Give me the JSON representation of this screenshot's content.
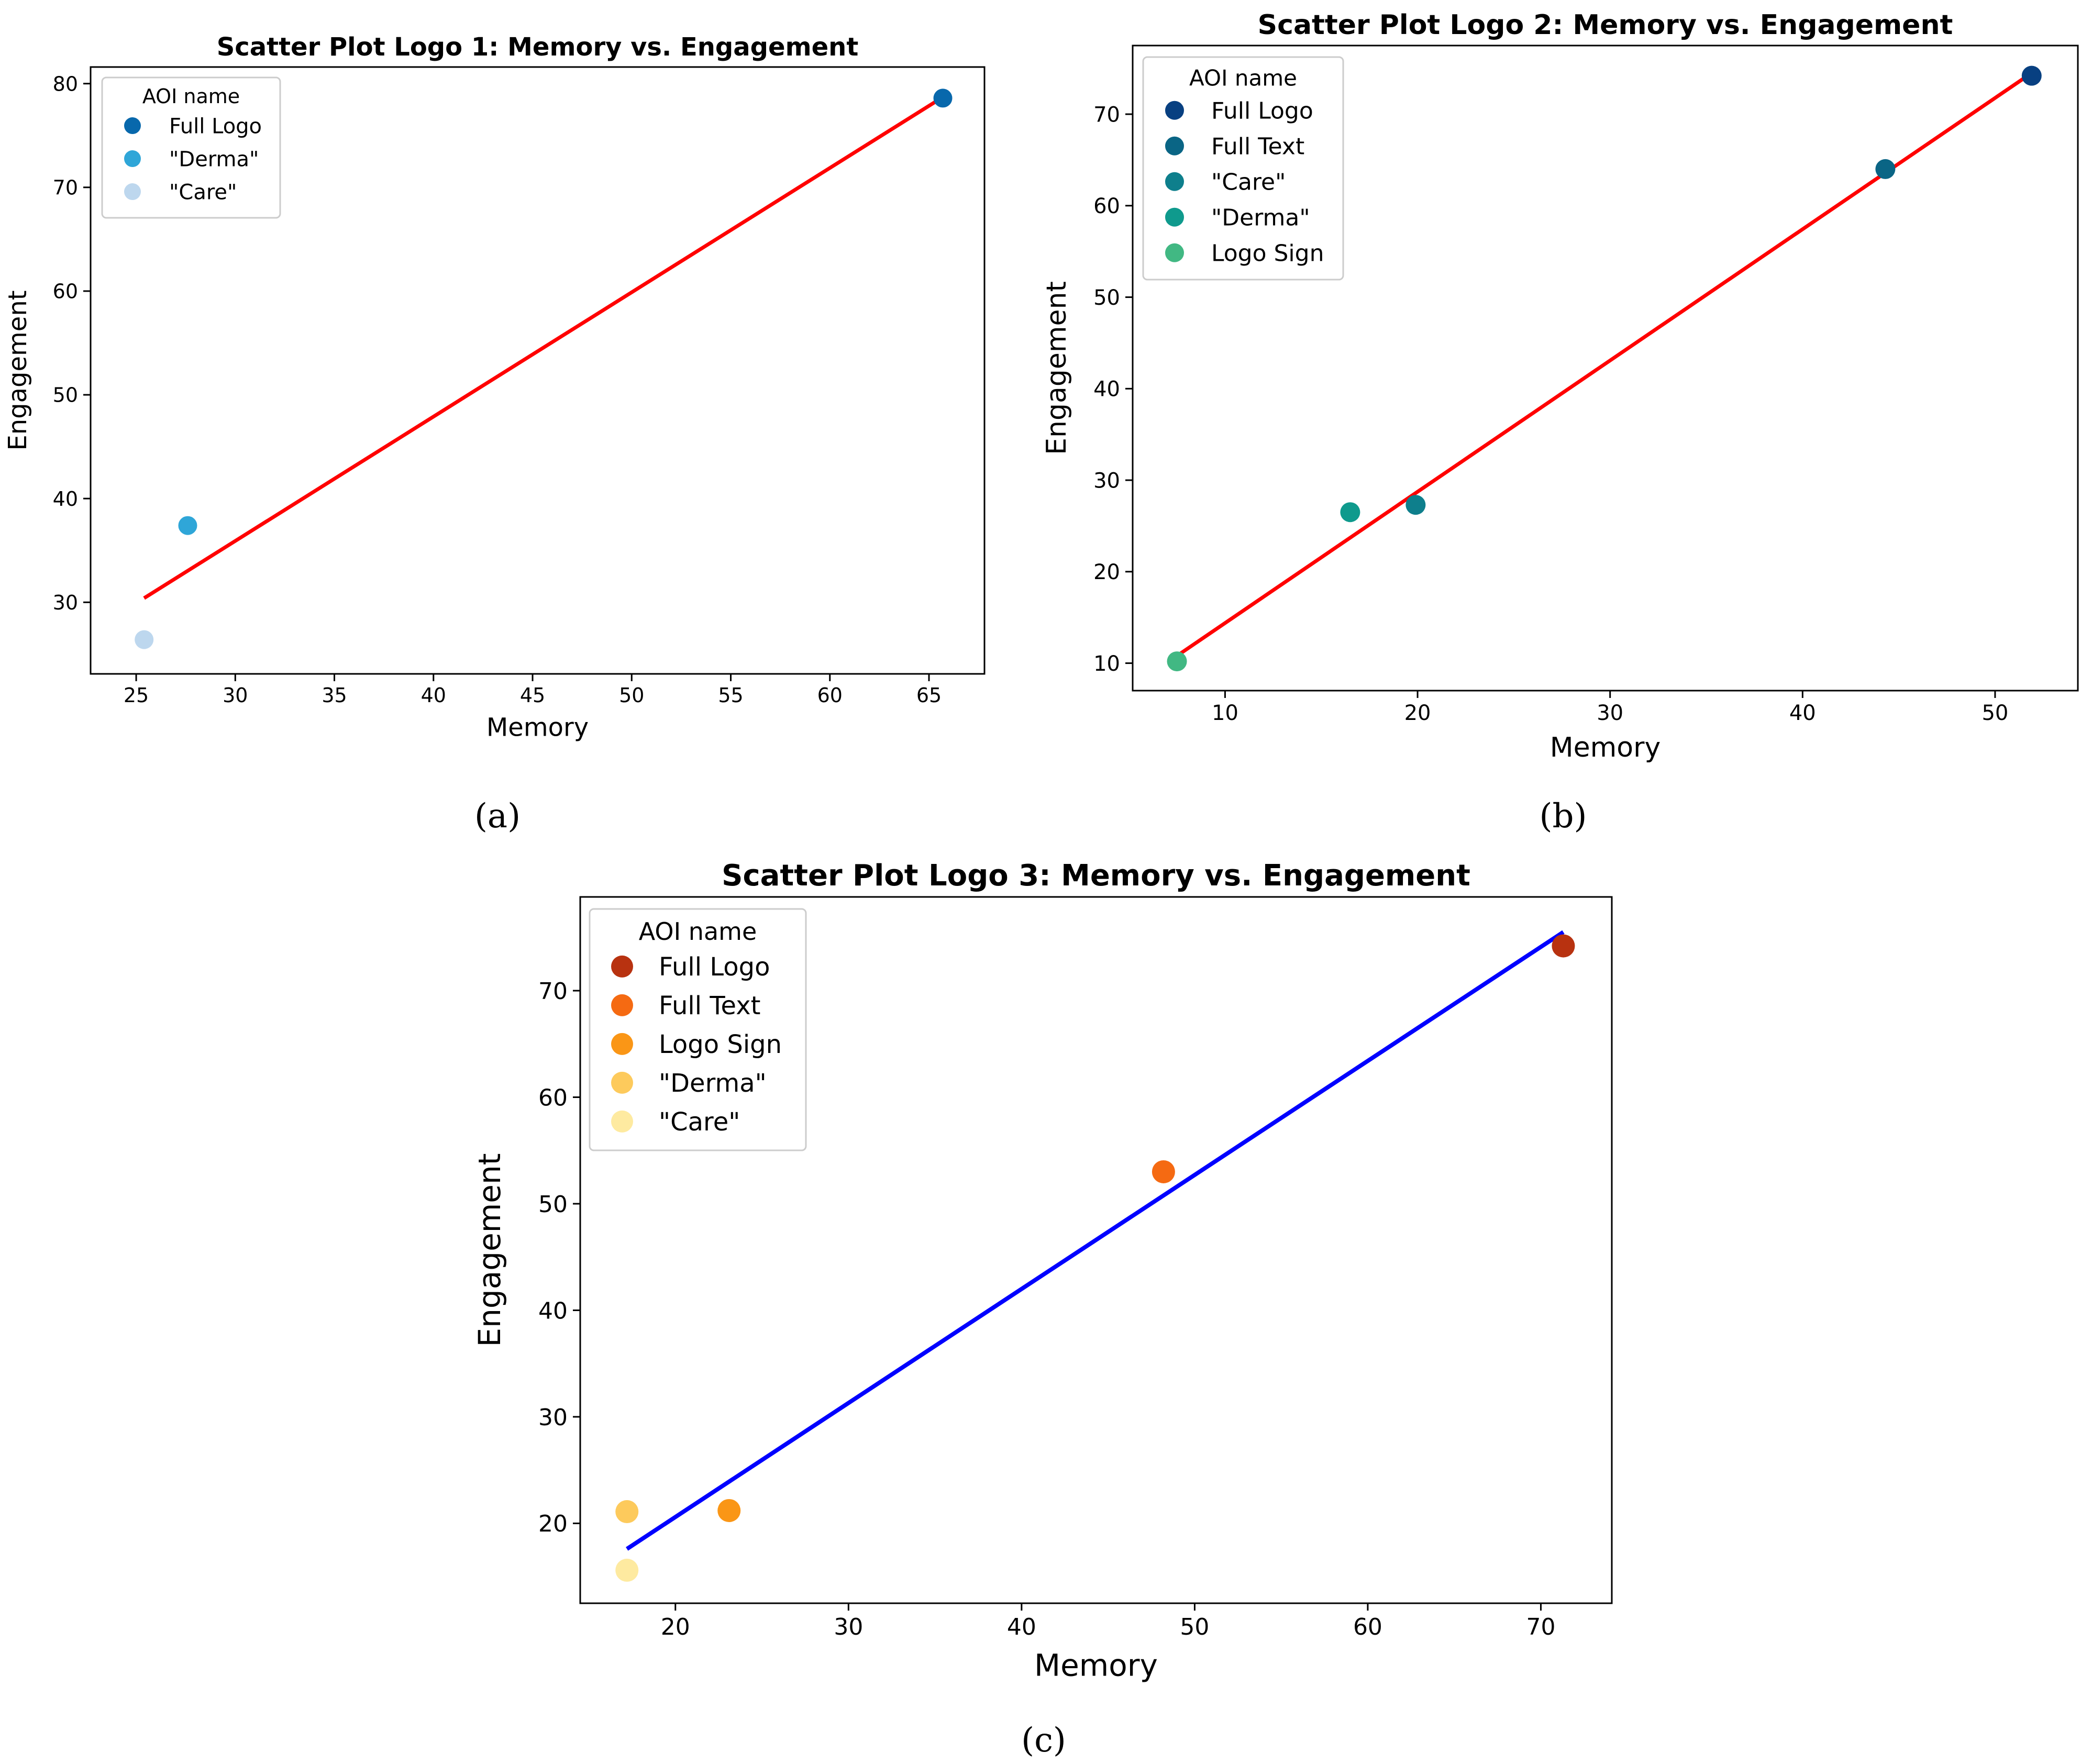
{
  "chart_data": [
    {
      "id": "a",
      "type": "scatter",
      "title": "Scatter Plot Logo 1: Memory vs. Engagement",
      "xlabel": "Memory",
      "ylabel": "Engagement",
      "xlim": [
        22.7,
        67.8
      ],
      "ylim": [
        23.1,
        81.6
      ],
      "xticks": [
        25,
        30,
        35,
        40,
        45,
        50,
        55,
        60,
        65
      ],
      "yticks": [
        30,
        40,
        50,
        60,
        70,
        80
      ],
      "legend_title": "AOI name",
      "legend_position": "upper-left",
      "series": [
        {
          "name": "Full Logo",
          "color": "#0868ac",
          "x": 65.7,
          "y": 78.6
        },
        {
          "name": "\"Derma\"",
          "color": "#2fa6d8",
          "x": 27.6,
          "y": 37.4
        },
        {
          "name": "\"Care\"",
          "color": "#bdd7ee",
          "x": 25.4,
          "y": 26.4
        }
      ],
      "fit_line": {
        "color": "#ff0000",
        "x": [
          25.4,
          65.7
        ],
        "y": [
          30.4,
          78.7
        ]
      },
      "caption": "(a)"
    },
    {
      "id": "b",
      "type": "scatter",
      "title": "Scatter Plot Logo 2: Memory vs. Engagement",
      "xlabel": "Memory",
      "ylabel": "Engagement",
      "xlim": [
        5.2,
        54.3
      ],
      "ylim": [
        7.0,
        77.5
      ],
      "xticks": [
        10,
        20,
        30,
        40,
        50
      ],
      "yticks": [
        10,
        20,
        30,
        40,
        50,
        60,
        70
      ],
      "legend_title": "AOI name",
      "legend_position": "upper-left",
      "series": [
        {
          "name": "Full Logo",
          "color": "#084081",
          "x": 51.9,
          "y": 74.2
        },
        {
          "name": "Full Text",
          "color": "#0a6585",
          "x": 44.3,
          "y": 64.0
        },
        {
          "name": "\"Care\"",
          "color": "#0e7f8c",
          "x": 19.9,
          "y": 27.3
        },
        {
          "name": "\"Derma\"",
          "color": "#0f9a8d",
          "x": 16.5,
          "y": 26.5
        },
        {
          "name": "Logo Sign",
          "color": "#41b883",
          "x": 7.5,
          "y": 10.2
        }
      ],
      "fit_line": {
        "color": "#ff0000",
        "x": [
          7.5,
          51.9
        ],
        "y": [
          10.8,
          74.5
        ]
      },
      "caption": "(b)"
    },
    {
      "id": "c",
      "type": "scatter",
      "title": "Scatter Plot Logo 3: Memory vs. Engagement",
      "xlabel": "Memory",
      "ylabel": "Engagement",
      "xlim": [
        14.5,
        74.1
      ],
      "ylim": [
        12.5,
        78.8
      ],
      "xticks": [
        20,
        30,
        40,
        50,
        60,
        70
      ],
      "yticks": [
        20,
        30,
        40,
        50,
        60,
        70
      ],
      "legend_title": "AOI name",
      "legend_position": "upper-left",
      "series": [
        {
          "name": "Full Logo",
          "color": "#b83210",
          "x": 71.3,
          "y": 74.2
        },
        {
          "name": "Full Text",
          "color": "#f56a12",
          "x": 48.2,
          "y": 53.0
        },
        {
          "name": "Logo Sign",
          "color": "#fa9616",
          "x": 23.1,
          "y": 21.2
        },
        {
          "name": "\"Derma\"",
          "color": "#fdca5c",
          "x": 17.2,
          "y": 21.1
        },
        {
          "name": "\"Care\"",
          "color": "#feeaa0",
          "x": 17.2,
          "y": 15.6
        }
      ],
      "fit_line": {
        "color": "#0000ff",
        "x": [
          17.2,
          71.3
        ],
        "y": [
          17.6,
          75.5
        ]
      },
      "caption": "(c)"
    }
  ]
}
